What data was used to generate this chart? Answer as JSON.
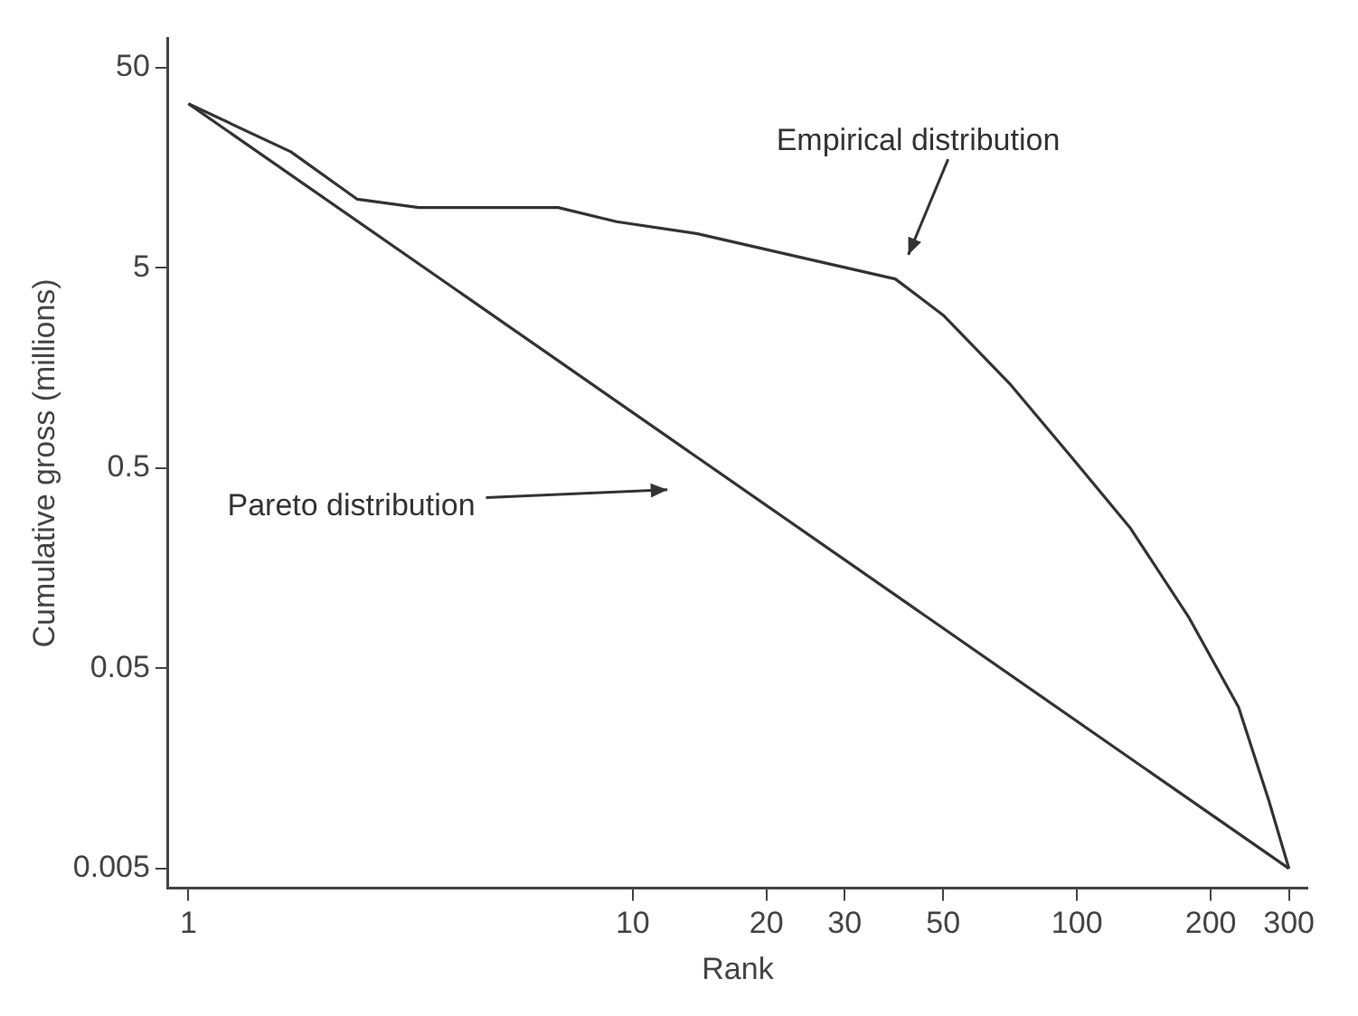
{
  "chart_data": {
    "type": "line",
    "xlabel": "Rank",
    "ylabel": "Cumulative gross (millions)",
    "log": "xy",
    "grid": false,
    "legend": false,
    "marker": "none",
    "line_style": "solid",
    "xlim": [
      0.9,
      330
    ],
    "ylim": [
      0.004,
      70
    ],
    "xticks": [
      1,
      10,
      20,
      30,
      50,
      100,
      200,
      300
    ],
    "yticks": [
      0.005,
      0.05,
      0.5,
      5,
      50
    ],
    "series": [
      {
        "color": "#333333",
        "x": [
          1,
          1.7,
          2.4,
          3.3,
          6.8,
          9.2,
          14,
          26,
          39,
          50,
          71,
          97,
          132,
          179,
          231,
          270,
          300
        ],
        "values": [
          33,
          19,
          11,
          10,
          10,
          8.5,
          7.4,
          5.4,
          4.4,
          2.9,
          1.3,
          0.57,
          0.25,
          0.089,
          0.032,
          0.011,
          0.005
        ]
      },
      {
        "color": "#333333",
        "x": [
          1,
          300
        ],
        "values": [
          33,
          0.005
        ]
      }
    ],
    "annotations": [
      "Empirical distribution",
      "Pareto distribution"
    ]
  }
}
